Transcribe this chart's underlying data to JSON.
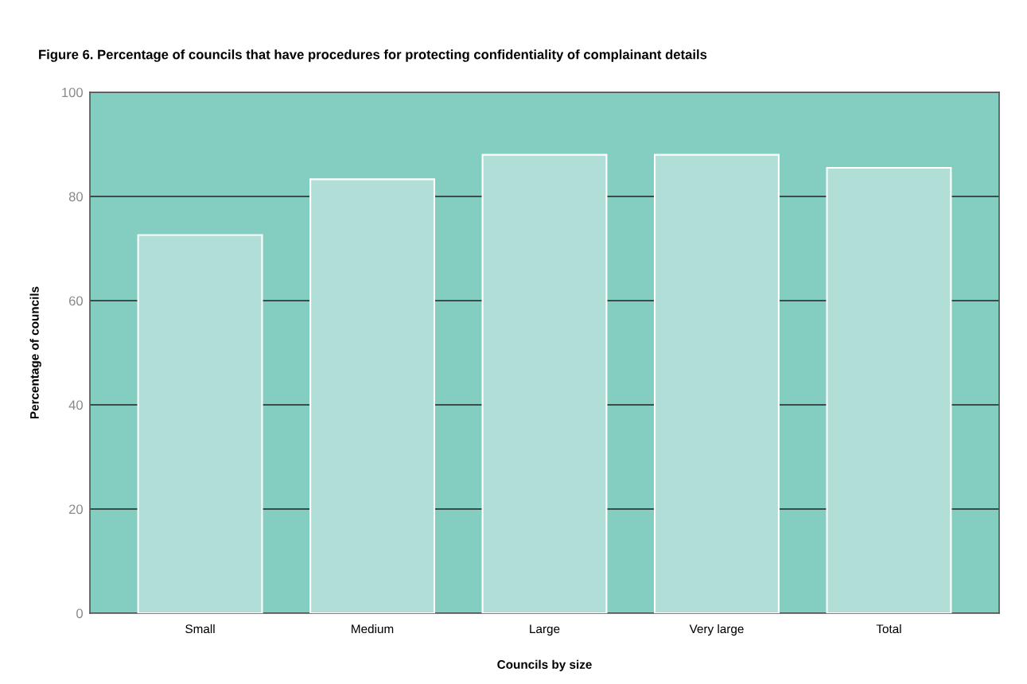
{
  "chart_data": {
    "type": "bar",
    "title": "Figure 6. Percentage of councils that have procedures for protecting confidentiality of complainant details",
    "xlabel": "Councils by size",
    "ylabel": "Percentage of councils",
    "categories": [
      "Small",
      "Medium",
      "Large",
      "Very large",
      "Total"
    ],
    "values": [
      72.6,
      83.3,
      88.0,
      88.0,
      85.5
    ],
    "color": "#b2ded8",
    "bands": [
      {
        "axis": "y",
        "from": 0,
        "to": 100,
        "color": "#83cec1"
      }
    ],
    "ylim": [
      0,
      100
    ],
    "yticks": [
      0,
      20,
      40,
      60,
      80,
      100
    ],
    "grid": "y",
    "legend": false
  }
}
